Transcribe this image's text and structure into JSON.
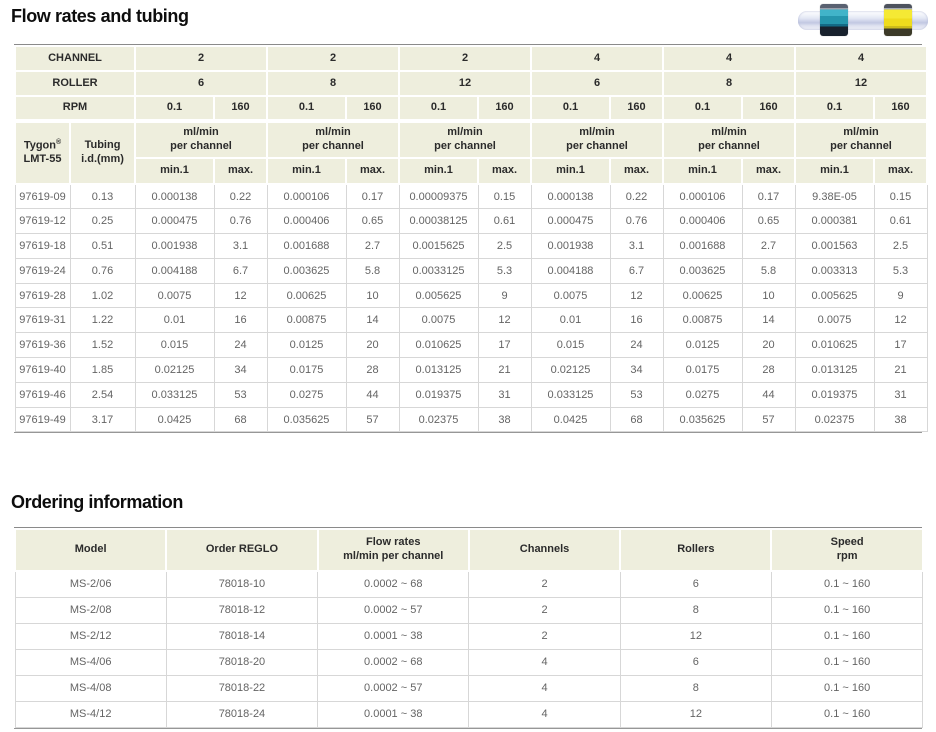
{
  "sections": {
    "flow": {
      "title": "Flow rates and tubing"
    },
    "ordering": {
      "title": "Ordering information"
    }
  },
  "tubing_photo": {
    "description": "clear pump tubing with two color-code collars",
    "collar_colors": {
      "left": "#2596ad",
      "right": "#efdc1d"
    }
  },
  "colors": {
    "header_background": "#eeeedd",
    "table_border": "#d7d7d7",
    "data_text": "#646464"
  },
  "flow_table": {
    "header": {
      "channel_label": "CHANNEL",
      "roller_label": "ROLLER",
      "rpm_label": "RPM",
      "tygon_lines": [
        "Tygon®",
        "LMT-55"
      ],
      "tubing_lines": [
        "Tubing",
        "i.d.(mm)"
      ],
      "mlmin_lines": [
        "ml/min",
        "per channel"
      ],
      "min_label": "min.1",
      "max_label": "max.",
      "channels": [
        "2",
        "2",
        "2",
        "4",
        "4",
        "4"
      ],
      "rollers": [
        "6",
        "8",
        "12",
        "6",
        "8",
        "12"
      ],
      "rpm_values": [
        "0.1",
        "160",
        "0.1",
        "160",
        "0.1",
        "160",
        "0.1",
        "160",
        "0.1",
        "160",
        "0.1",
        "160"
      ]
    },
    "rows": [
      {
        "tygon": "97619-09",
        "id": "0.13",
        "values": [
          "0.000138",
          "0.22",
          "0.000106",
          "0.17",
          "0.00009375",
          "0.15",
          "0.000138",
          "0.22",
          "0.000106",
          "0.17",
          "9.38E-05",
          "0.15"
        ]
      },
      {
        "tygon": "97619-12",
        "id": "0.25",
        "values": [
          "0.000475",
          "0.76",
          "0.000406",
          "0.65",
          "0.00038125",
          "0.61",
          "0.000475",
          "0.76",
          "0.000406",
          "0.65",
          "0.000381",
          "0.61"
        ]
      },
      {
        "tygon": "97619-18",
        "id": "0.51",
        "values": [
          "0.001938",
          "3.1",
          "0.001688",
          "2.7",
          "0.0015625",
          "2.5",
          "0.001938",
          "3.1",
          "0.001688",
          "2.7",
          "0.001563",
          "2.5"
        ]
      },
      {
        "tygon": "97619-24",
        "id": "0.76",
        "values": [
          "0.004188",
          "6.7",
          "0.003625",
          "5.8",
          "0.0033125",
          "5.3",
          "0.004188",
          "6.7",
          "0.003625",
          "5.8",
          "0.003313",
          "5.3"
        ]
      },
      {
        "tygon": "97619-28",
        "id": "1.02",
        "values": [
          "0.0075",
          "12",
          "0.00625",
          "10",
          "0.005625",
          "9",
          "0.0075",
          "12",
          "0.00625",
          "10",
          "0.005625",
          "9"
        ]
      },
      {
        "tygon": "97619-31",
        "id": "1.22",
        "values": [
          "0.01",
          "16",
          "0.00875",
          "14",
          "0.0075",
          "12",
          "0.01",
          "16",
          "0.00875",
          "14",
          "0.0075",
          "12"
        ]
      },
      {
        "tygon": "97619-36",
        "id": "1.52",
        "values": [
          "0.015",
          "24",
          "0.0125",
          "20",
          "0.010625",
          "17",
          "0.015",
          "24",
          "0.0125",
          "20",
          "0.010625",
          "17"
        ]
      },
      {
        "tygon": "97619-40",
        "id": "1.85",
        "values": [
          "0.02125",
          "34",
          "0.0175",
          "28",
          "0.013125",
          "21",
          "0.02125",
          "34",
          "0.0175",
          "28",
          "0.013125",
          "21"
        ]
      },
      {
        "tygon": "97619-46",
        "id": "2.54",
        "values": [
          "0.033125",
          "53",
          "0.0275",
          "44",
          "0.019375",
          "31",
          "0.033125",
          "53",
          "0.0275",
          "44",
          "0.019375",
          "31"
        ]
      },
      {
        "tygon": "97619-49",
        "id": "3.17",
        "values": [
          "0.0425",
          "68",
          "0.035625",
          "57",
          "0.02375",
          "38",
          "0.0425",
          "68",
          "0.035625",
          "57",
          "0.02375",
          "38"
        ]
      }
    ]
  },
  "ordering_table": {
    "headers": [
      [
        "Model"
      ],
      [
        "Order REGLO"
      ],
      [
        "Flow rates",
        "ml/min per channel"
      ],
      [
        "Channels"
      ],
      [
        "Rollers"
      ],
      [
        "Speed",
        "rpm"
      ]
    ],
    "rows": [
      [
        "MS-2/06",
        "78018-10",
        "0.0002 ~ 68",
        "2",
        "6",
        "0.1 ~ 160"
      ],
      [
        "MS-2/08",
        "78018-12",
        "0.0002 ~ 57",
        "2",
        "8",
        "0.1 ~ 160"
      ],
      [
        "MS-2/12",
        "78018-14",
        "0.0001 ~ 38",
        "2",
        "12",
        "0.1 ~ 160"
      ],
      [
        "MS-4/06",
        "78018-20",
        "0.0002 ~ 68",
        "4",
        "6",
        "0.1 ~ 160"
      ],
      [
        "MS-4/08",
        "78018-22",
        "0.0002 ~ 57",
        "4",
        "8",
        "0.1 ~ 160"
      ],
      [
        "MS-4/12",
        "78018-24",
        "0.0001 ~ 38",
        "4",
        "12",
        "0.1 ~ 160"
      ]
    ]
  }
}
